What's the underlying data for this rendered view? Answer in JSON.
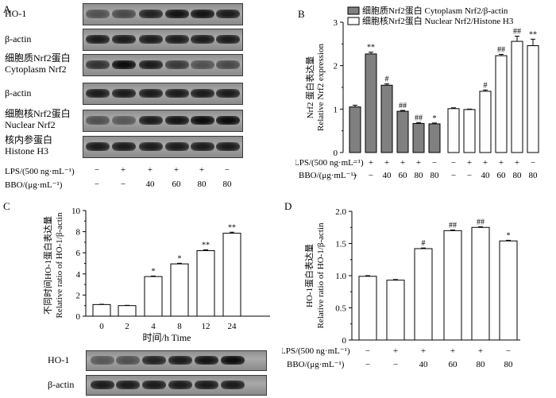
{
  "panel_letters": {
    "a": "A",
    "b": "B",
    "c": "C",
    "d": "D"
  },
  "panel_a": {
    "rows": [
      {
        "label": "HO-1",
        "intensity": [
          0.55,
          0.6,
          0.85,
          0.95,
          0.95,
          0.9
        ]
      },
      {
        "label": "β-actin",
        "intensity": [
          0.9,
          0.9,
          0.9,
          0.9,
          0.9,
          0.9
        ]
      },
      {
        "label": "细胞质Nrf2蛋白\nCytoplasm Nrf2",
        "intensity": [
          0.75,
          1.0,
          0.9,
          0.7,
          0.55,
          0.6
        ]
      },
      {
        "label": "β-actin",
        "intensity": [
          0.9,
          0.9,
          0.9,
          0.9,
          0.9,
          0.9
        ]
      },
      {
        "label": "细胞核Nrf2蛋白\nNuclear Nrf2",
        "intensity": [
          0.55,
          0.5,
          0.9,
          0.95,
          1.0,
          1.0
        ]
      },
      {
        "label": "核内参蛋白\nHistone H3",
        "intensity": [
          0.9,
          0.9,
          0.9,
          0.9,
          0.9,
          0.9
        ]
      }
    ],
    "lps_label": "LPS/(500 ng·mL⁻¹)",
    "bbo_label": "BBO/(μg·mL⁻¹)",
    "lps": [
      "−",
      "+",
      "+",
      "+",
      "+",
      "−"
    ],
    "bbo": [
      "−",
      "−",
      "40",
      "60",
      "80",
      "80"
    ]
  },
  "chart_data": [
    {
      "id": "B",
      "type": "bar",
      "ylabel_cn": "Nrf2 蛋白表达量",
      "ylabel": "Relative Nrf2 expression",
      "ylim": [
        0,
        3
      ],
      "yticks": [
        "0",
        "1",
        "2",
        "3"
      ],
      "legend": [
        {
          "text": "细胞质Nrf2蛋白  Cytoplasm Nrf2/β-actin",
          "fill": "#808080"
        },
        {
          "text": "细胞核Nrf2蛋白  Nuclear Nrf2/Histone H3",
          "fill": "#ffffff"
        }
      ],
      "series": [
        {
          "name": "细胞质Nrf2蛋白  Cytoplasm Nrf2/β-actin",
          "color": "#808080",
          "values": [
            1.05,
            2.27,
            1.55,
            0.95,
            0.67,
            0.66
          ],
          "errors": [
            0.04,
            0.04,
            0.03,
            0.02,
            0.02,
            0.02
          ],
          "marks": [
            "",
            "**",
            "#",
            "##",
            "##",
            "*"
          ]
        },
        {
          "name": "细胞核Nrf2蛋白  Nuclear Nrf2/Histone H3",
          "color": "#ffffff",
          "values": [
            1.01,
            0.99,
            1.41,
            2.23,
            2.56,
            2.46
          ],
          "errors": [
            0.02,
            0.01,
            0.03,
            0.03,
            0.12,
            0.15
          ],
          "marks": [
            "",
            "",
            "#",
            "##",
            "##",
            "**"
          ]
        }
      ],
      "lps_label": "LPS/(500 ng·mL⁻¹)",
      "bbo_label": "BBO/(μg·mL⁻¹)",
      "lps": [
        "−",
        "+",
        "+",
        "+",
        "+",
        "−"
      ],
      "bbo": [
        "−",
        "−",
        "40",
        "60",
        "80",
        "80"
      ]
    },
    {
      "id": "C",
      "type": "bar",
      "ylabel_cn": "不同时间HO-1蛋白表达量",
      "ylabel": "Relative ratio of HO-1/β-actin",
      "xlabel": "时间/h Time",
      "ylim": [
        0,
        10
      ],
      "yticks": [
        "0",
        "2",
        "4",
        "6",
        "8",
        "10"
      ],
      "categories": [
        "0",
        "2",
        "4",
        "8",
        "12",
        "24"
      ],
      "values": [
        1.1,
        1.0,
        3.75,
        4.95,
        6.2,
        7.85
      ],
      "errors": [
        0.03,
        0.03,
        0.05,
        0.06,
        0.08,
        0.1
      ],
      "marks": [
        "",
        "",
        "*",
        "*",
        "**",
        "**"
      ],
      "blots": [
        {
          "label": "HO-1",
          "intensity": [
            0.5,
            0.55,
            0.85,
            0.9,
            0.95,
            1.0
          ]
        },
        {
          "label": "β-actin",
          "intensity": [
            0.9,
            0.9,
            0.9,
            0.9,
            0.9,
            0.9
          ]
        }
      ]
    },
    {
      "id": "D",
      "type": "bar",
      "ylabel_cn": "HO-1蛋白表达量",
      "ylabel": "Relative ratio of HO-1/β-actin",
      "ylim": [
        0,
        2
      ],
      "yticks": [
        "0",
        "0.5",
        "1.0",
        "1.5",
        "2.0"
      ],
      "values": [
        0.99,
        0.93,
        1.42,
        1.7,
        1.75,
        1.54
      ],
      "errors": [
        0.01,
        0.01,
        0.01,
        0.01,
        0.01,
        0.01
      ],
      "marks": [
        "",
        "",
        "#",
        "##",
        "##",
        "*"
      ],
      "lps_label": "LPS/(500 ng·mL⁻¹)",
      "bbo_label": "BBO/(μg·mL⁻¹)",
      "lps": [
        "−",
        "+",
        "+",
        "+",
        "+",
        "−"
      ],
      "bbo": [
        "−",
        "−",
        "40",
        "60",
        "80",
        "80"
      ]
    }
  ]
}
